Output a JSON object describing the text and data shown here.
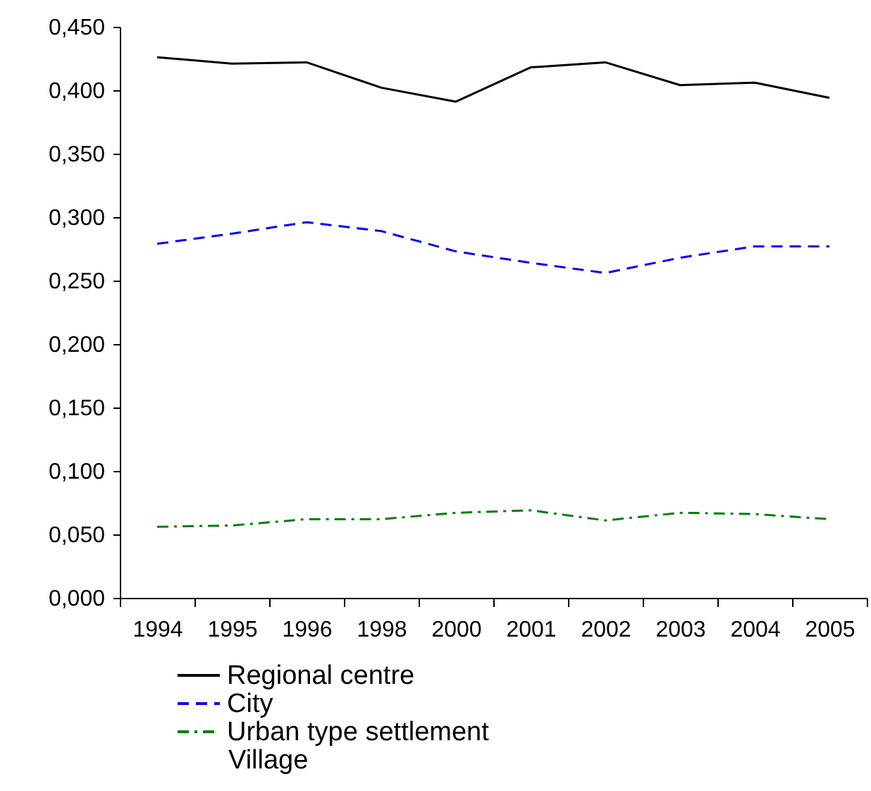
{
  "chart_data": {
    "type": "line",
    "categories": [
      "1994",
      "1995",
      "1996",
      "1998",
      "2000",
      "2001",
      "2002",
      "2003",
      "2004",
      "2005"
    ],
    "series": [
      {
        "name": "Regional centre",
        "color": "#000000",
        "line_style": "solid",
        "values": [
          0.426,
          0.421,
          0.422,
          0.402,
          0.391,
          0.418,
          0.422,
          0.404,
          0.406,
          0.394
        ]
      },
      {
        "name": "City",
        "color": "#0000ff",
        "line_style": "dashed",
        "values": [
          0.279,
          0.287,
          0.296,
          0.289,
          0.273,
          0.264,
          0.256,
          0.268,
          0.277,
          0.277
        ]
      },
      {
        "name": "Urban type settlement",
        "color": "#008000",
        "line_style": "dashdot",
        "values": [
          0.056,
          0.057,
          0.062,
          0.062,
          0.067,
          0.069,
          0.061,
          0.067,
          0.066,
          0.062
        ]
      }
    ],
    "annotations": [
      "Village"
    ],
    "ylim": [
      0,
      0.45
    ],
    "yticks": [
      {
        "value": 0,
        "label": "0,000"
      },
      {
        "value": 0.05,
        "label": "0,050"
      },
      {
        "value": 0.1,
        "label": "0,100"
      },
      {
        "value": 0.15,
        "label": "0,150"
      },
      {
        "value": 0.2,
        "label": "0,200"
      },
      {
        "value": 0.25,
        "label": "0,250"
      },
      {
        "value": 0.3,
        "label": "0,300"
      },
      {
        "value": 0.35,
        "label": "0,350"
      },
      {
        "value": 0.4,
        "label": "0,400"
      },
      {
        "value": 0.45,
        "label": "0,450"
      }
    ],
    "grid": false,
    "legend": "bottom",
    "marker": "none"
  }
}
